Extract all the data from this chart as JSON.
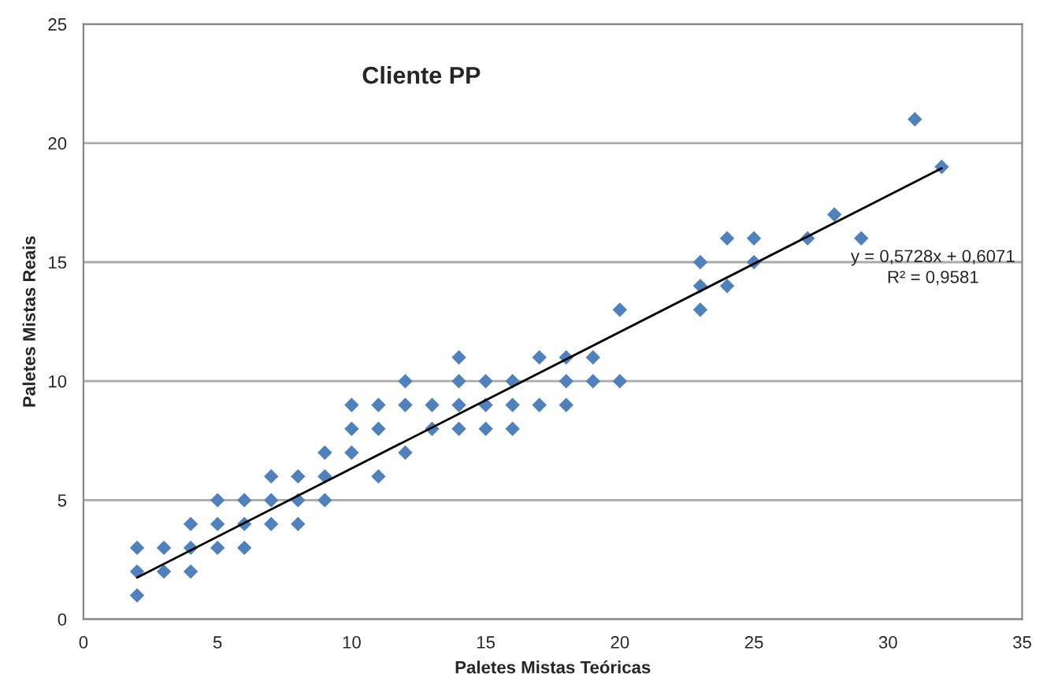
{
  "chart_data": {
    "type": "scatter",
    "title": "Cliente PP",
    "xlabel": "Paletes Mistas Teóricas",
    "ylabel": "Paletes Mistas Reais",
    "annotations": [
      "y = 0,5728x + 0,6071",
      "R² = 0,9581"
    ],
    "series": [
      {
        "color": "#4f81bd",
        "marker": "diamond",
        "x": [
          2,
          2,
          2,
          3,
          3,
          4,
          4,
          4,
          5,
          5,
          5,
          6,
          6,
          6,
          7,
          7,
          7,
          8,
          8,
          8,
          9,
          9,
          9,
          10,
          10,
          10,
          11,
          11,
          11,
          12,
          12,
          12,
          13,
          13,
          14,
          14,
          14,
          14,
          15,
          15,
          15,
          16,
          16,
          16,
          17,
          17,
          18,
          18,
          18,
          19,
          19,
          20,
          20,
          23,
          23,
          23,
          24,
          24,
          25,
          25,
          27,
          28,
          29,
          31,
          32
        ],
        "values": [
          1,
          2,
          3,
          2,
          3,
          2,
          3,
          4,
          3,
          4,
          5,
          3,
          4,
          5,
          4,
          5,
          6,
          4,
          5,
          6,
          5,
          6,
          7,
          7,
          8,
          9,
          6,
          8,
          9,
          7,
          9,
          10,
          8,
          9,
          8,
          9,
          10,
          11,
          8,
          9,
          10,
          8,
          9,
          10,
          9,
          11,
          9,
          10,
          11,
          10,
          11,
          10,
          13,
          13,
          14,
          15,
          14,
          16,
          15,
          16,
          16,
          17,
          16,
          21,
          19
        ]
      },
      {
        "type": "line",
        "color": "#000000",
        "marker": "none",
        "line_style": "solid",
        "x": [
          2,
          32
        ],
        "values": [
          1.75,
          18.94
        ]
      }
    ],
    "xlim": [
      0,
      35
    ],
    "ylim": [
      0,
      25
    ],
    "xticks": [
      0,
      5,
      10,
      15,
      20,
      25,
      30,
      35
    ],
    "yticks": [
      0,
      5,
      10,
      15,
      20,
      25
    ],
    "grid": "y",
    "legend": false
  }
}
